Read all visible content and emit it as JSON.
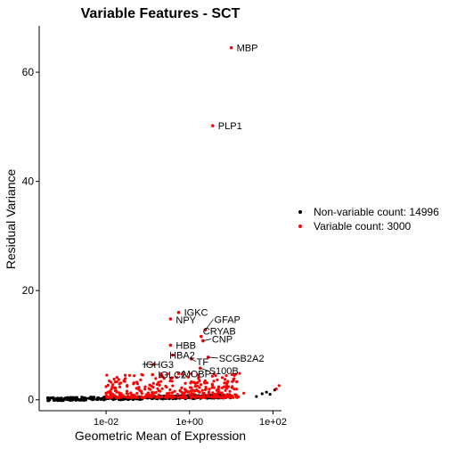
{
  "chart_data": {
    "type": "scatter",
    "title": "Variable Features - SCT",
    "xlabel": "Geometric Mean of Expression",
    "ylabel": "Residual Variance",
    "x_scale": "log10",
    "xlim": [
      0.00025,
      160
    ],
    "ylim": [
      -2.0,
      68.5
    ],
    "x_ticks": [
      {
        "value": 0.01,
        "label": "1e-02"
      },
      {
        "value": 1,
        "label": "1e+00"
      },
      {
        "value": 100,
        "label": "1e+02"
      }
    ],
    "y_ticks": [
      {
        "value": 0,
        "label": "0"
      },
      {
        "value": 20,
        "label": "20"
      },
      {
        "value": 40,
        "label": "40"
      },
      {
        "value": 60,
        "label": "60"
      }
    ],
    "grid": false,
    "legend_position": "right",
    "series": [
      {
        "name": "Non-variable count: 14996",
        "color": "#000000"
      },
      {
        "name": "Variable count: 3000",
        "color": "#ff0000"
      }
    ],
    "labeled_points": [
      {
        "label": "MBP",
        "x": 10.0,
        "y": 64.5
      },
      {
        "label": "PLP1",
        "x": 3.6,
        "y": 50.2
      },
      {
        "label": "IGKC",
        "x": 0.55,
        "y": 16.0
      },
      {
        "label": "NPY",
        "x": 0.35,
        "y": 14.8
      },
      {
        "label": "GFAP",
        "x": 2.4,
        "y": 12.8
      },
      {
        "label": "CRYAB",
        "x": 1.9,
        "y": 11.6
      },
      {
        "label": "CNP",
        "x": 2.1,
        "y": 10.8
      },
      {
        "label": "HBB",
        "x": 0.35,
        "y": 10.0
      },
      {
        "label": "HBA2",
        "x": 0.4,
        "y": 8.2
      },
      {
        "label": "IGHG3",
        "x": 0.14,
        "y": 6.5
      },
      {
        "label": "TF",
        "x": 1.1,
        "y": 7.5
      },
      {
        "label": "SCGB2A2",
        "x": 2.8,
        "y": 7.8
      },
      {
        "label": "S100B",
        "x": 1.8,
        "y": 5.8
      },
      {
        "label": "IGLC2",
        "x": 0.13,
        "y": 4.6
      },
      {
        "label": "MOBP",
        "x": 0.55,
        "y": 4.8
      }
    ]
  }
}
